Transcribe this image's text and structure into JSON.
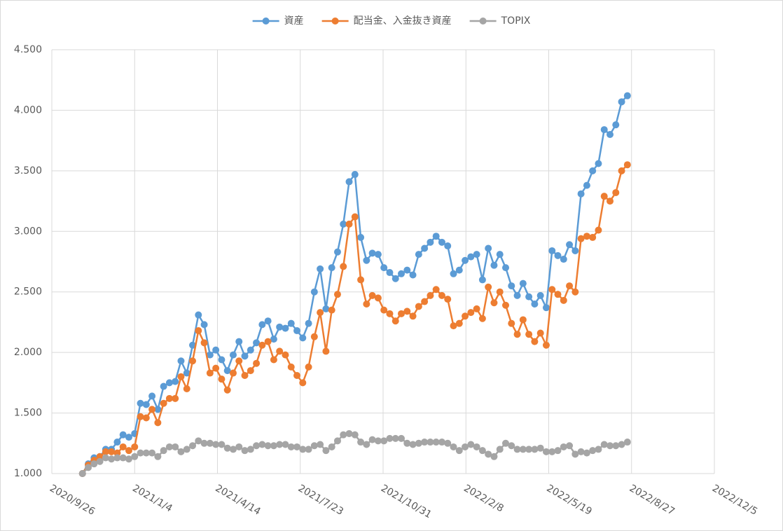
{
  "chart_data": {
    "type": "line",
    "x": [
      "2020/11/2",
      "2020/11/9",
      "2020/11/16",
      "2020/11/23",
      "2020/11/30",
      "2020/12/7",
      "2020/12/14",
      "2020/12/21",
      "2020/12/28",
      "2021/1/4",
      "2021/1/11",
      "2021/1/18",
      "2021/1/25",
      "2021/2/1",
      "2021/2/8",
      "2021/2/15",
      "2021/2/22",
      "2021/3/1",
      "2021/3/8",
      "2021/3/15",
      "2021/3/22",
      "2021/3/29",
      "2021/4/5",
      "2021/4/12",
      "2021/4/19",
      "2021/4/26",
      "2021/5/3",
      "2021/5/10",
      "2021/5/17",
      "2021/5/24",
      "2021/5/31",
      "2021/6/7",
      "2021/6/14",
      "2021/6/21",
      "2021/6/28",
      "2021/7/5",
      "2021/7/12",
      "2021/7/19",
      "2021/7/26",
      "2021/8/2",
      "2021/8/9",
      "2021/8/16",
      "2021/8/23",
      "2021/8/30",
      "2021/9/6",
      "2021/9/13",
      "2021/9/20",
      "2021/9/27",
      "2021/10/4",
      "2021/10/11",
      "2021/10/18",
      "2021/10/25",
      "2021/11/1",
      "2021/11/8",
      "2021/11/15",
      "2021/11/22",
      "2021/11/29",
      "2021/12/6",
      "2021/12/13",
      "2021/12/20",
      "2021/12/27",
      "2022/1/3",
      "2022/1/10",
      "2022/1/17",
      "2022/1/24",
      "2022/1/31",
      "2022/2/7",
      "2022/2/14",
      "2022/2/21",
      "2022/2/28",
      "2022/3/7",
      "2022/3/14",
      "2022/3/21",
      "2022/3/28",
      "2022/4/4",
      "2022/4/11",
      "2022/4/18",
      "2022/4/25",
      "2022/5/2",
      "2022/5/9",
      "2022/5/16",
      "2022/5/23",
      "2022/5/30",
      "2022/6/6",
      "2022/6/13",
      "2022/6/20",
      "2022/6/27",
      "2022/7/4",
      "2022/7/11",
      "2022/7/18",
      "2022/7/25",
      "2022/8/1",
      "2022/8/8",
      "2022/8/15",
      "2022/8/22"
    ],
    "series": [
      {
        "name": "資産",
        "color": "#5b9bd5",
        "values": [
          1.0,
          1.08,
          1.13,
          1.14,
          1.2,
          1.2,
          1.26,
          1.32,
          1.3,
          1.33,
          1.58,
          1.57,
          1.64,
          1.53,
          1.72,
          1.75,
          1.76,
          1.93,
          1.83,
          2.06,
          2.31,
          2.23,
          1.98,
          2.02,
          1.94,
          1.85,
          1.98,
          2.09,
          1.97,
          2.02,
          2.08,
          2.23,
          2.26,
          2.11,
          2.21,
          2.2,
          2.24,
          2.18,
          2.12,
          2.24,
          2.5,
          2.69,
          2.36,
          2.7,
          2.83,
          3.06,
          3.41,
          3.47,
          2.95,
          2.76,
          2.82,
          2.81,
          2.7,
          2.66,
          2.61,
          2.65,
          2.68,
          2.64,
          2.81,
          2.86,
          2.91,
          2.96,
          2.91,
          2.88,
          2.65,
          2.68,
          2.76,
          2.79,
          2.81,
          2.6,
          2.86,
          2.72,
          2.81,
          2.7,
          2.55,
          2.47,
          2.57,
          2.46,
          2.4,
          2.47,
          2.37,
          2.84,
          2.8,
          2.77,
          2.89,
          2.84,
          3.31,
          3.38,
          3.5,
          3.56,
          3.84,
          3.8,
          3.88,
          4.07,
          4.12
        ]
      },
      {
        "name": "配当金、入金抜き資産",
        "color": "#ed7d31",
        "values": [
          1.0,
          1.07,
          1.11,
          1.14,
          1.18,
          1.18,
          1.17,
          1.22,
          1.19,
          1.22,
          1.47,
          1.46,
          1.53,
          1.42,
          1.58,
          1.62,
          1.62,
          1.8,
          1.7,
          1.93,
          2.18,
          2.08,
          1.83,
          1.87,
          1.78,
          1.69,
          1.83,
          1.93,
          1.81,
          1.85,
          1.91,
          2.06,
          2.09,
          1.94,
          2.01,
          1.98,
          1.88,
          1.81,
          1.75,
          1.88,
          2.13,
          2.33,
          2.01,
          2.35,
          2.48,
          2.71,
          3.06,
          3.12,
          2.6,
          2.4,
          2.47,
          2.45,
          2.35,
          2.32,
          2.26,
          2.32,
          2.34,
          2.3,
          2.38,
          2.42,
          2.47,
          2.52,
          2.47,
          2.44,
          2.22,
          2.24,
          2.3,
          2.33,
          2.36,
          2.28,
          2.54,
          2.41,
          2.5,
          2.39,
          2.24,
          2.15,
          2.27,
          2.15,
          2.09,
          2.16,
          2.06,
          2.52,
          2.48,
          2.43,
          2.55,
          2.5,
          2.94,
          2.96,
          2.95,
          3.01,
          3.29,
          3.25,
          3.32,
          3.5,
          3.55
        ]
      },
      {
        "name": "TOPIX",
        "color": "#a5a5a5",
        "values": [
          1.0,
          1.05,
          1.08,
          1.1,
          1.13,
          1.12,
          1.13,
          1.13,
          1.12,
          1.14,
          1.17,
          1.17,
          1.17,
          1.14,
          1.19,
          1.22,
          1.22,
          1.18,
          1.2,
          1.23,
          1.27,
          1.25,
          1.25,
          1.24,
          1.24,
          1.21,
          1.2,
          1.22,
          1.19,
          1.2,
          1.23,
          1.24,
          1.23,
          1.23,
          1.24,
          1.24,
          1.22,
          1.22,
          1.2,
          1.2,
          1.23,
          1.24,
          1.19,
          1.22,
          1.27,
          1.32,
          1.33,
          1.32,
          1.26,
          1.24,
          1.28,
          1.27,
          1.27,
          1.29,
          1.29,
          1.29,
          1.25,
          1.24,
          1.25,
          1.26,
          1.26,
          1.26,
          1.26,
          1.25,
          1.22,
          1.19,
          1.22,
          1.24,
          1.22,
          1.19,
          1.16,
          1.14,
          1.2,
          1.25,
          1.23,
          1.2,
          1.2,
          1.2,
          1.2,
          1.21,
          1.18,
          1.18,
          1.19,
          1.22,
          1.23,
          1.16,
          1.18,
          1.17,
          1.19,
          1.2,
          1.24,
          1.23,
          1.23,
          1.24,
          1.26
        ]
      }
    ],
    "xlim": [
      "2020/9/26",
      "2022/12/5"
    ],
    "xticks": [
      "2020/9/26",
      "2021/1/4",
      "2021/4/14",
      "2021/7/23",
      "2021/10/31",
      "2022/2/8",
      "2022/5/19",
      "2022/8/27",
      "2022/12/5"
    ],
    "ylim": [
      1,
      4.5
    ],
    "yticks": [
      {
        "value": 1,
        "label": "1.000"
      },
      {
        "value": 1.5,
        "label": "1.500"
      },
      {
        "value": 2,
        "label": "2.000"
      },
      {
        "value": 2.5,
        "label": "2.500"
      },
      {
        "value": 3,
        "label": "3.000"
      },
      {
        "value": 3.5,
        "label": "3.500"
      },
      {
        "value": 4,
        "label": "4.000"
      },
      {
        "value": 4.5,
        "label": "4.500"
      }
    ],
    "grid": true,
    "legend": "top"
  }
}
